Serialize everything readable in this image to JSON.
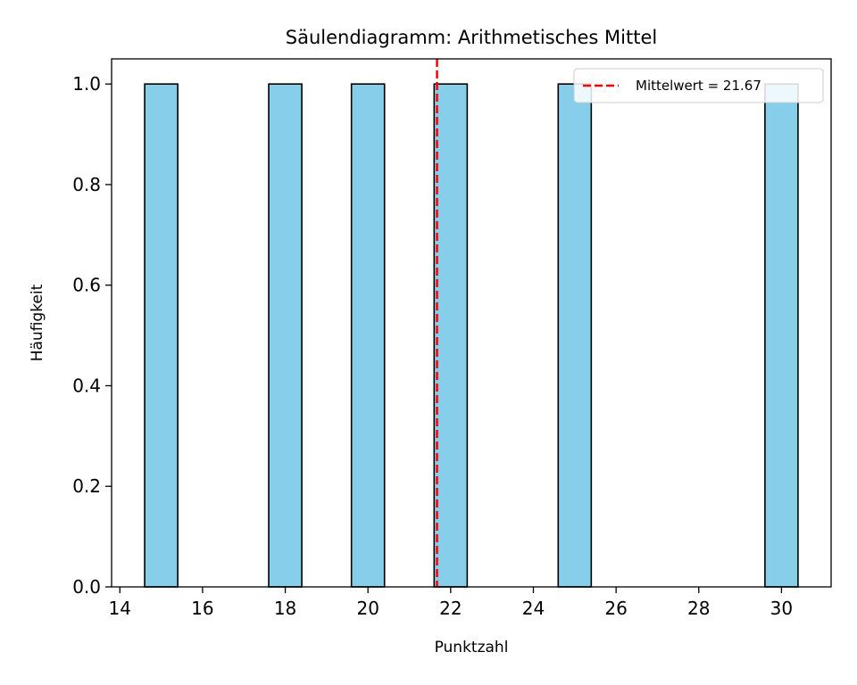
{
  "chart_data": {
    "type": "bar",
    "title": "Säulendiagramm: Arithmetisches Mittel",
    "xlabel": "Punktzahl",
    "ylabel": "Häufigkeit",
    "xlim": [
      13.8,
      31.2
    ],
    "ylim": [
      0,
      1.05
    ],
    "x_ticks": [
      14,
      16,
      18,
      20,
      22,
      24,
      26,
      28,
      30
    ],
    "x_tick_labels": [
      "14",
      "16",
      "18",
      "20",
      "22",
      "24",
      "26",
      "28",
      "30"
    ],
    "y_ticks": [
      0.0,
      0.2,
      0.4,
      0.6,
      0.8,
      1.0
    ],
    "y_tick_labels": [
      "0.0",
      "0.2",
      "0.4",
      "0.6",
      "0.8",
      "1.0"
    ],
    "bars": [
      {
        "x_start": 14.6,
        "x_end": 15.4,
        "value": 1
      },
      {
        "x_start": 17.6,
        "x_end": 18.4,
        "value": 1
      },
      {
        "x_start": 19.6,
        "x_end": 20.4,
        "value": 1
      },
      {
        "x_start": 21.6,
        "x_end": 22.4,
        "value": 1
      },
      {
        "x_start": 24.6,
        "x_end": 25.4,
        "value": 1
      },
      {
        "x_start": 29.6,
        "x_end": 30.4,
        "value": 1
      }
    ],
    "mean_line": {
      "x": 21.67,
      "label": "Mittelwert = 21.67",
      "color": "#ff0000",
      "style": "dashed"
    },
    "bar_color": "#87ceeb",
    "bar_edge_color": "#000000",
    "legend_position": "top-right",
    "grid": false
  }
}
